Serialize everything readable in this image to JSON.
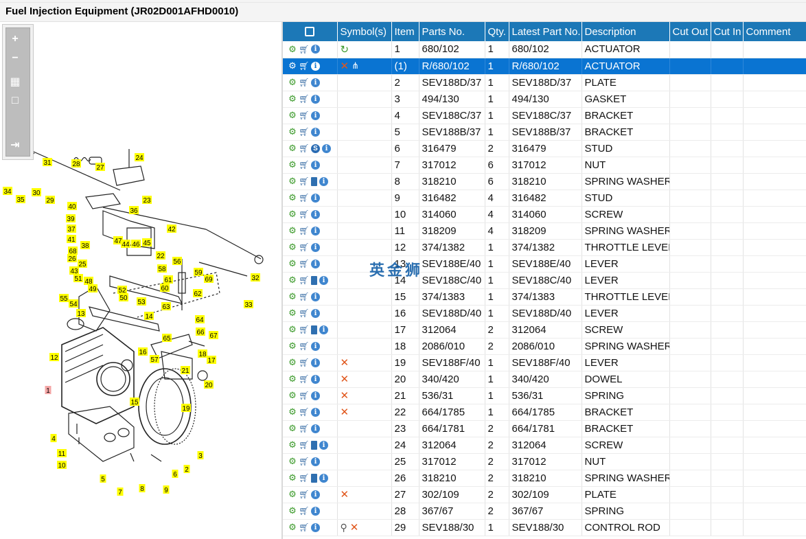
{
  "window": {
    "title": "Fuel Injection Equipment (JR02D001AFHD0010)"
  },
  "watermark": "英金狮",
  "zoom_panel": {
    "buttons": [
      {
        "name": "zoom-in-button",
        "glyph": "+"
      },
      {
        "name": "zoom-out-button",
        "glyph": "−"
      },
      {
        "name": "fit-page-button",
        "glyph": "▦"
      },
      {
        "name": "actual-size-button",
        "glyph": "□"
      },
      {
        "name": "panel-toggle-button",
        "glyph": "⇥"
      }
    ]
  },
  "diagram": {
    "callouts": [
      "1",
      "2",
      "3",
      "4",
      "5",
      "6",
      "7",
      "8",
      "9",
      "10",
      "11",
      "12",
      "13",
      "14",
      "15",
      "16",
      "17",
      "18",
      "19",
      "20",
      "21",
      "22",
      "23",
      "24",
      "25",
      "26",
      "27",
      "28",
      "29",
      "30",
      "31",
      "32",
      "33",
      "34",
      "35",
      "36",
      "37",
      "38",
      "39",
      "40",
      "41",
      "42",
      "43",
      "44",
      "45",
      "46",
      "47",
      "48",
      "49",
      "50",
      "51",
      "52",
      "53",
      "54",
      "55",
      "56",
      "57",
      "58",
      "59",
      "60",
      "61",
      "62",
      "63",
      "64",
      "65",
      "66",
      "67",
      "68",
      "69"
    ],
    "highlighted_callout": "1"
  },
  "table": {
    "columns": [
      "",
      "Symbol(s)",
      "Item",
      "Parts No.",
      "Qty.",
      "Latest Part No.",
      "Description",
      "Cut Out",
      "Cut In",
      "Comment"
    ],
    "header_icon": "search-doc-icon",
    "rows": [
      {
        "icons": [
          "gear",
          "cart",
          "info"
        ],
        "symbols": [
          "refresh"
        ],
        "item": "1",
        "part": "680/102",
        "qty": "1",
        "latest": "680/102",
        "desc": "ACTUATOR",
        "cut_out": "",
        "cut_in": "",
        "comment": ""
      },
      {
        "icons": [
          "gear",
          "cart",
          "info"
        ],
        "symbols": [
          "x",
          "tree"
        ],
        "item": "(1)",
        "part": "R/680/102",
        "qty": "1",
        "latest": "R/680/102",
        "desc": "ACTUATOR",
        "cut_out": "",
        "cut_in": "",
        "comment": "",
        "selected": true
      },
      {
        "icons": [
          "gear",
          "cart",
          "info"
        ],
        "symbols": [],
        "item": "2",
        "part": "SEV188D/37",
        "qty": "1",
        "latest": "SEV188D/37",
        "desc": "PLATE",
        "cut_out": "",
        "cut_in": "",
        "comment": ""
      },
      {
        "icons": [
          "gear",
          "cart",
          "info"
        ],
        "symbols": [],
        "item": "3",
        "part": "494/130",
        "qty": "1",
        "latest": "494/130",
        "desc": "GASKET",
        "cut_out": "",
        "cut_in": "",
        "comment": ""
      },
      {
        "icons": [
          "gear",
          "cart",
          "info"
        ],
        "symbols": [],
        "item": "4",
        "part": "SEV188C/37",
        "qty": "1",
        "latest": "SEV188C/37",
        "desc": "BRACKET",
        "cut_out": "",
        "cut_in": "",
        "comment": ""
      },
      {
        "icons": [
          "gear",
          "cart",
          "info"
        ],
        "symbols": [],
        "item": "5",
        "part": "SEV188B/37",
        "qty": "1",
        "latest": "SEV188B/37",
        "desc": "BRACKET",
        "cut_out": "",
        "cut_in": "",
        "comment": ""
      },
      {
        "icons": [
          "gear",
          "cart",
          "s",
          "info"
        ],
        "symbols": [],
        "item": "6",
        "part": "316479",
        "qty": "2",
        "latest": "316479",
        "desc": "STUD",
        "cut_out": "",
        "cut_in": "",
        "comment": ""
      },
      {
        "icons": [
          "gear",
          "cart",
          "info"
        ],
        "symbols": [],
        "item": "7",
        "part": "317012",
        "qty": "6",
        "latest": "317012",
        "desc": "NUT",
        "cut_out": "",
        "cut_in": "",
        "comment": ""
      },
      {
        "icons": [
          "gear",
          "cart",
          "book",
          "info"
        ],
        "symbols": [],
        "item": "8",
        "part": "318210",
        "qty": "6",
        "latest": "318210",
        "desc": "SPRING WASHER",
        "cut_out": "",
        "cut_in": "",
        "comment": ""
      },
      {
        "icons": [
          "gear",
          "cart",
          "info"
        ],
        "symbols": [],
        "item": "9",
        "part": "316482",
        "qty": "4",
        "latest": "316482",
        "desc": "STUD",
        "cut_out": "",
        "cut_in": "",
        "comment": ""
      },
      {
        "icons": [
          "gear",
          "cart",
          "info"
        ],
        "symbols": [],
        "item": "10",
        "part": "314060",
        "qty": "4",
        "latest": "314060",
        "desc": "SCREW",
        "cut_out": "",
        "cut_in": "",
        "comment": ""
      },
      {
        "icons": [
          "gear",
          "cart",
          "info"
        ],
        "symbols": [],
        "item": "11",
        "part": "318209",
        "qty": "4",
        "latest": "318209",
        "desc": "SPRING WASHER",
        "cut_out": "",
        "cut_in": "",
        "comment": ""
      },
      {
        "icons": [
          "gear",
          "cart",
          "info"
        ],
        "symbols": [],
        "item": "12",
        "part": "374/1382",
        "qty": "1",
        "latest": "374/1382",
        "desc": "THROTTLE LEVER I",
        "cut_out": "",
        "cut_in": "",
        "comment": ""
      },
      {
        "icons": [
          "gear",
          "cart",
          "info"
        ],
        "symbols": [],
        "item": "13",
        "part": "SEV188E/40",
        "qty": "1",
        "latest": "SEV188E/40",
        "desc": "LEVER",
        "cut_out": "",
        "cut_in": "",
        "comment": ""
      },
      {
        "icons": [
          "gear",
          "cart",
          "book",
          "info"
        ],
        "symbols": [],
        "item": "14",
        "part": "SEV188C/40",
        "qty": "1",
        "latest": "SEV188C/40",
        "desc": "LEVER",
        "cut_out": "",
        "cut_in": "",
        "comment": ""
      },
      {
        "icons": [
          "gear",
          "cart",
          "info"
        ],
        "symbols": [],
        "item": "15",
        "part": "374/1383",
        "qty": "1",
        "latest": "374/1383",
        "desc": "THROTTLE LEVER I",
        "cut_out": "",
        "cut_in": "",
        "comment": ""
      },
      {
        "icons": [
          "gear",
          "cart",
          "info"
        ],
        "symbols": [],
        "item": "16",
        "part": "SEV188D/40",
        "qty": "1",
        "latest": "SEV188D/40",
        "desc": "LEVER",
        "cut_out": "",
        "cut_in": "",
        "comment": ""
      },
      {
        "icons": [
          "gear",
          "cart",
          "book",
          "info"
        ],
        "symbols": [],
        "item": "17",
        "part": "312064",
        "qty": "2",
        "latest": "312064",
        "desc": "SCREW",
        "cut_out": "",
        "cut_in": "",
        "comment": ""
      },
      {
        "icons": [
          "gear",
          "cart",
          "info"
        ],
        "symbols": [],
        "item": "18",
        "part": "2086/010",
        "qty": "2",
        "latest": "2086/010",
        "desc": "SPRING WASHER",
        "cut_out": "",
        "cut_in": "",
        "comment": ""
      },
      {
        "icons": [
          "gear",
          "cart",
          "info"
        ],
        "symbols": [
          "x"
        ],
        "item": "19",
        "part": "SEV188F/40",
        "qty": "1",
        "latest": "SEV188F/40",
        "desc": "LEVER",
        "cut_out": "",
        "cut_in": "",
        "comment": ""
      },
      {
        "icons": [
          "gear",
          "cart",
          "info"
        ],
        "symbols": [
          "x"
        ],
        "item": "20",
        "part": "340/420",
        "qty": "1",
        "latest": "340/420",
        "desc": "DOWEL",
        "cut_out": "",
        "cut_in": "",
        "comment": ""
      },
      {
        "icons": [
          "gear",
          "cart",
          "info"
        ],
        "symbols": [
          "x"
        ],
        "item": "21",
        "part": "536/31",
        "qty": "1",
        "latest": "536/31",
        "desc": "SPRING",
        "cut_out": "",
        "cut_in": "",
        "comment": ""
      },
      {
        "icons": [
          "gear",
          "cart",
          "info"
        ],
        "symbols": [
          "x"
        ],
        "item": "22",
        "part": "664/1785",
        "qty": "1",
        "latest": "664/1785",
        "desc": "BRACKET",
        "cut_out": "",
        "cut_in": "",
        "comment": ""
      },
      {
        "icons": [
          "gear",
          "cart",
          "info"
        ],
        "symbols": [],
        "item": "23",
        "part": "664/1781",
        "qty": "2",
        "latest": "664/1781",
        "desc": "BRACKET",
        "cut_out": "",
        "cut_in": "",
        "comment": ""
      },
      {
        "icons": [
          "gear",
          "cart",
          "book",
          "info"
        ],
        "symbols": [],
        "item": "24",
        "part": "312064",
        "qty": "2",
        "latest": "312064",
        "desc": "SCREW",
        "cut_out": "",
        "cut_in": "",
        "comment": ""
      },
      {
        "icons": [
          "gear",
          "cart",
          "info"
        ],
        "symbols": [],
        "item": "25",
        "part": "317012",
        "qty": "2",
        "latest": "317012",
        "desc": "NUT",
        "cut_out": "",
        "cut_in": "",
        "comment": ""
      },
      {
        "icons": [
          "gear",
          "cart",
          "book",
          "info"
        ],
        "symbols": [],
        "item": "26",
        "part": "318210",
        "qty": "2",
        "latest": "318210",
        "desc": "SPRING WASHER",
        "cut_out": "",
        "cut_in": "",
        "comment": ""
      },
      {
        "icons": [
          "gear",
          "cart",
          "info"
        ],
        "symbols": [
          "x"
        ],
        "item": "27",
        "part": "302/109",
        "qty": "2",
        "latest": "302/109",
        "desc": "PLATE",
        "cut_out": "",
        "cut_in": "",
        "comment": ""
      },
      {
        "icons": [
          "gear",
          "cart",
          "info"
        ],
        "symbols": [],
        "item": "28",
        "part": "367/67",
        "qty": "2",
        "latest": "367/67",
        "desc": "SPRING",
        "cut_out": "",
        "cut_in": "",
        "comment": ""
      },
      {
        "icons": [
          "gear",
          "cart",
          "info"
        ],
        "symbols": [
          "pin",
          "x"
        ],
        "item": "29",
        "part": "SEV188/30",
        "qty": "1",
        "latest": "SEV188/30",
        "desc": "CONTROL ROD",
        "cut_out": "",
        "cut_in": "",
        "comment": ""
      }
    ]
  },
  "colors": {
    "header_bg": "#1c78b7",
    "selected_row": "#0a74d2",
    "callout_bg": "#ffff00",
    "callout_highlight": "#f4a6a6",
    "removed_symbol": "#e0561b"
  }
}
